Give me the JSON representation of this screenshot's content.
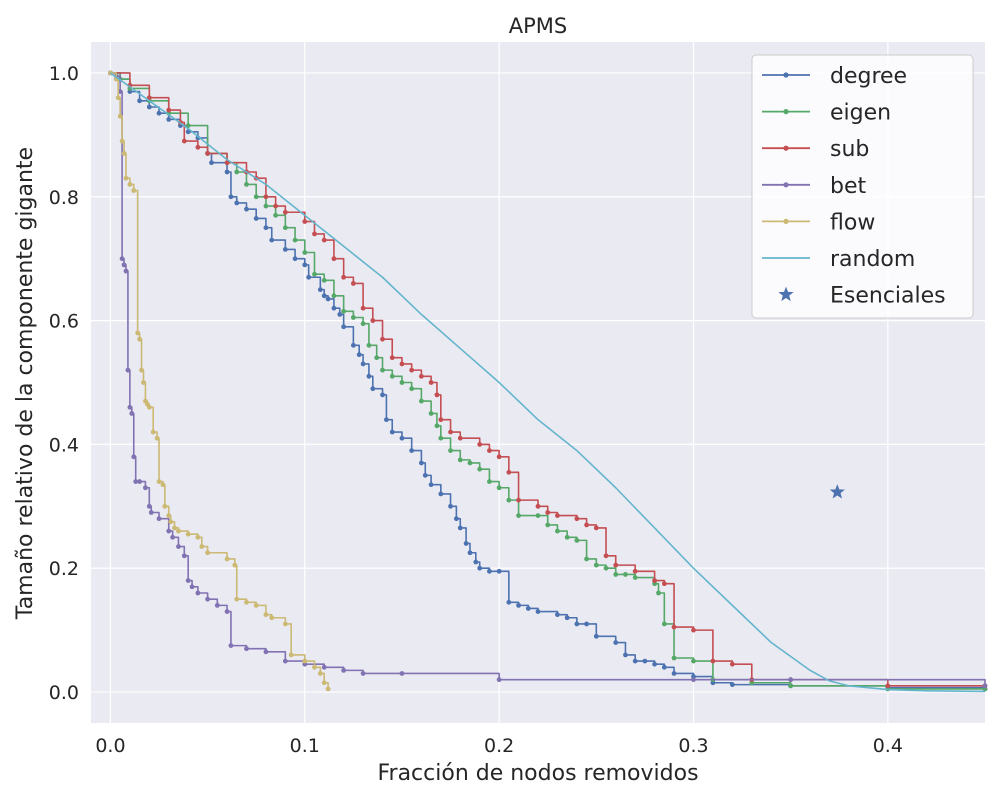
{
  "chart_data": {
    "type": "line",
    "title": "APMS",
    "xlabel": "Fracción de nodos removidos",
    "ylabel": "Tamaño relativo de la componente gigante",
    "xlim": [
      -0.01,
      0.45
    ],
    "ylim": [
      -0.05,
      1.05
    ],
    "xticks": [
      0.0,
      0.1,
      0.2,
      0.3,
      0.4
    ],
    "xtick_labels": [
      "0.0",
      "0.1",
      "0.2",
      "0.3",
      "0.4"
    ],
    "yticks": [
      0.0,
      0.2,
      0.4,
      0.6,
      0.8,
      1.0
    ],
    "ytick_labels": [
      "0.0",
      "0.2",
      "0.4",
      "0.6",
      "0.8",
      "1.0"
    ],
    "grid": true,
    "legend_position": "top-right",
    "background": "#eaeaf2",
    "series": [
      {
        "name": "degree",
        "color": "#4c72b0",
        "marker": "dot",
        "x": [
          0.0,
          0.005,
          0.01,
          0.015,
          0.02,
          0.025,
          0.03,
          0.036,
          0.04,
          0.045,
          0.05,
          0.052,
          0.06,
          0.062,
          0.065,
          0.07,
          0.075,
          0.08,
          0.083,
          0.09,
          0.095,
          0.1,
          0.102,
          0.108,
          0.11,
          0.112,
          0.115,
          0.118,
          0.12,
          0.125,
          0.128,
          0.13,
          0.133,
          0.135,
          0.14,
          0.142,
          0.145,
          0.15,
          0.155,
          0.16,
          0.162,
          0.165,
          0.17,
          0.175,
          0.178,
          0.18,
          0.183,
          0.185,
          0.188,
          0.19,
          0.195,
          0.2,
          0.205,
          0.21,
          0.215,
          0.22,
          0.23,
          0.235,
          0.24,
          0.245,
          0.25,
          0.26,
          0.265,
          0.27,
          0.275,
          0.28,
          0.285,
          0.29,
          0.3,
          0.31,
          0.32,
          0.35,
          0.4,
          0.45
        ],
        "y": [
          1.0,
          0.99,
          0.97,
          0.955,
          0.945,
          0.935,
          0.925,
          0.915,
          0.905,
          0.895,
          0.87,
          0.855,
          0.84,
          0.8,
          0.79,
          0.78,
          0.765,
          0.75,
          0.73,
          0.715,
          0.7,
          0.69,
          0.67,
          0.65,
          0.64,
          0.635,
          0.62,
          0.61,
          0.59,
          0.56,
          0.545,
          0.53,
          0.51,
          0.49,
          0.48,
          0.44,
          0.42,
          0.41,
          0.39,
          0.37,
          0.35,
          0.335,
          0.32,
          0.3,
          0.28,
          0.265,
          0.24,
          0.225,
          0.21,
          0.2,
          0.195,
          0.195,
          0.145,
          0.14,
          0.135,
          0.13,
          0.125,
          0.12,
          0.11,
          0.11,
          0.09,
          0.08,
          0.06,
          0.05,
          0.05,
          0.045,
          0.04,
          0.03,
          0.025,
          0.015,
          0.012,
          0.01,
          0.007,
          0.005
        ]
      },
      {
        "name": "eigen",
        "color": "#55a868",
        "marker": "dot",
        "x": [
          0.0,
          0.005,
          0.01,
          0.02,
          0.03,
          0.04,
          0.05,
          0.06,
          0.065,
          0.07,
          0.075,
          0.08,
          0.085,
          0.09,
          0.095,
          0.1,
          0.105,
          0.11,
          0.115,
          0.12,
          0.125,
          0.13,
          0.133,
          0.137,
          0.14,
          0.145,
          0.15,
          0.155,
          0.16,
          0.165,
          0.168,
          0.17,
          0.175,
          0.18,
          0.185,
          0.19,
          0.195,
          0.2,
          0.205,
          0.21,
          0.22,
          0.225,
          0.23,
          0.235,
          0.24,
          0.245,
          0.25,
          0.255,
          0.26,
          0.265,
          0.27,
          0.28,
          0.282,
          0.285,
          0.29,
          0.3,
          0.31,
          0.33,
          0.35,
          0.4,
          0.45
        ],
        "y": [
          1.0,
          0.99,
          0.975,
          0.955,
          0.935,
          0.915,
          0.87,
          0.855,
          0.84,
          0.82,
          0.8,
          0.785,
          0.77,
          0.75,
          0.73,
          0.71,
          0.675,
          0.665,
          0.64,
          0.615,
          0.605,
          0.595,
          0.56,
          0.54,
          0.52,
          0.51,
          0.5,
          0.49,
          0.47,
          0.45,
          0.43,
          0.41,
          0.39,
          0.375,
          0.37,
          0.36,
          0.34,
          0.33,
          0.31,
          0.285,
          0.285,
          0.27,
          0.26,
          0.25,
          0.245,
          0.215,
          0.205,
          0.2,
          0.19,
          0.19,
          0.185,
          0.175,
          0.16,
          0.11,
          0.055,
          0.05,
          0.02,
          0.015,
          0.01,
          0.005,
          0.005
        ]
      },
      {
        "name": "sub",
        "color": "#c44e52",
        "marker": "dot",
        "x": [
          0.0,
          0.01,
          0.02,
          0.03,
          0.036,
          0.038,
          0.045,
          0.05,
          0.06,
          0.07,
          0.075,
          0.08,
          0.085,
          0.09,
          0.1,
          0.105,
          0.11,
          0.115,
          0.12,
          0.125,
          0.13,
          0.135,
          0.14,
          0.145,
          0.15,
          0.155,
          0.16,
          0.165,
          0.168,
          0.17,
          0.175,
          0.18,
          0.19,
          0.195,
          0.2,
          0.205,
          0.21,
          0.22,
          0.225,
          0.23,
          0.24,
          0.245,
          0.25,
          0.255,
          0.26,
          0.27,
          0.28,
          0.285,
          0.29,
          0.3,
          0.31,
          0.32,
          0.33,
          0.35,
          0.4,
          0.45
        ],
        "y": [
          1.0,
          0.98,
          0.96,
          0.94,
          0.92,
          0.89,
          0.88,
          0.87,
          0.855,
          0.84,
          0.83,
          0.8,
          0.785,
          0.775,
          0.76,
          0.74,
          0.73,
          0.7,
          0.67,
          0.66,
          0.62,
          0.6,
          0.57,
          0.54,
          0.53,
          0.52,
          0.51,
          0.5,
          0.48,
          0.44,
          0.42,
          0.41,
          0.4,
          0.39,
          0.38,
          0.355,
          0.31,
          0.3,
          0.29,
          0.285,
          0.28,
          0.27,
          0.265,
          0.22,
          0.205,
          0.195,
          0.18,
          0.175,
          0.105,
          0.1,
          0.05,
          0.045,
          0.02,
          0.02,
          0.01,
          0.01
        ]
      },
      {
        "name": "bet",
        "color": "#8172b2",
        "marker": "dot",
        "x": [
          0.0,
          0.003,
          0.005,
          0.006,
          0.007,
          0.008,
          0.009,
          0.01,
          0.011,
          0.012,
          0.013,
          0.015,
          0.018,
          0.02,
          0.021,
          0.025,
          0.03,
          0.032,
          0.035,
          0.038,
          0.04,
          0.042,
          0.045,
          0.05,
          0.055,
          0.06,
          0.062,
          0.07,
          0.08,
          0.09,
          0.1,
          0.11,
          0.12,
          0.13,
          0.15,
          0.2,
          0.3,
          0.35,
          0.45
        ],
        "y": [
          1.0,
          0.995,
          0.97,
          0.7,
          0.69,
          0.68,
          0.52,
          0.46,
          0.45,
          0.38,
          0.34,
          0.34,
          0.33,
          0.3,
          0.29,
          0.28,
          0.26,
          0.25,
          0.235,
          0.22,
          0.18,
          0.17,
          0.16,
          0.15,
          0.14,
          0.13,
          0.075,
          0.07,
          0.065,
          0.05,
          0.045,
          0.04,
          0.035,
          0.03,
          0.03,
          0.02,
          0.02,
          0.02,
          0.01
        ]
      },
      {
        "name": "flow",
        "color": "#ccb974",
        "marker": "dot",
        "x": [
          0.0,
          0.003,
          0.004,
          0.005,
          0.006,
          0.007,
          0.008,
          0.01,
          0.012,
          0.014,
          0.015,
          0.016,
          0.017,
          0.018,
          0.019,
          0.02,
          0.022,
          0.024,
          0.025,
          0.027,
          0.028,
          0.03,
          0.031,
          0.033,
          0.035,
          0.04,
          0.045,
          0.047,
          0.05,
          0.06,
          0.064,
          0.065,
          0.07,
          0.075,
          0.08,
          0.083,
          0.09,
          0.093,
          0.1,
          0.105,
          0.108,
          0.11,
          0.112
        ],
        "y": [
          1.0,
          0.99,
          0.96,
          0.93,
          0.89,
          0.87,
          0.83,
          0.82,
          0.81,
          0.58,
          0.57,
          0.52,
          0.5,
          0.47,
          0.465,
          0.46,
          0.42,
          0.41,
          0.34,
          0.335,
          0.3,
          0.285,
          0.275,
          0.265,
          0.26,
          0.255,
          0.25,
          0.235,
          0.225,
          0.215,
          0.205,
          0.15,
          0.145,
          0.14,
          0.125,
          0.12,
          0.11,
          0.06,
          0.05,
          0.04,
          0.03,
          0.015,
          0.005
        ]
      },
      {
        "name": "random",
        "color": "#64b5cd",
        "marker": "none",
        "x": [
          0.0,
          0.02,
          0.04,
          0.06,
          0.08,
          0.1,
          0.12,
          0.14,
          0.16,
          0.18,
          0.2,
          0.22,
          0.24,
          0.26,
          0.28,
          0.3,
          0.32,
          0.34,
          0.36,
          0.37,
          0.38,
          0.4,
          0.42,
          0.45
        ],
        "y": [
          1.0,
          0.955,
          0.91,
          0.86,
          0.82,
          0.77,
          0.72,
          0.67,
          0.61,
          0.555,
          0.5,
          0.44,
          0.39,
          0.33,
          0.265,
          0.2,
          0.14,
          0.08,
          0.035,
          0.018,
          0.01,
          0.004,
          0.002,
          0.001
        ]
      }
    ],
    "points": [
      {
        "name": "Esenciales",
        "color": "#4c72b0",
        "marker": "star",
        "x": 0.374,
        "y": 0.323
      }
    ]
  }
}
